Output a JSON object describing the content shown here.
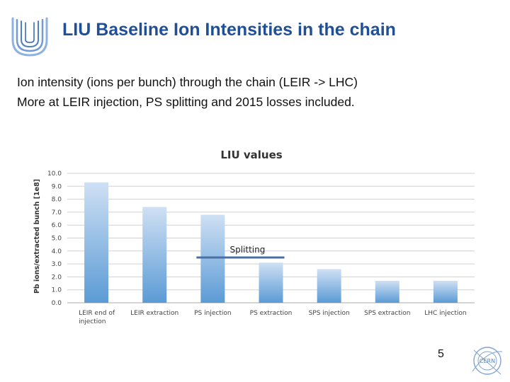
{
  "slide": {
    "title": "LIU Baseline Ion Intensities in the chain",
    "subtitle_line1": "Ion intensity (ions per bunch) through the chain (LEIR -> LHC)",
    "subtitle_line2": "More at LEIR injection, PS splitting and 2015 losses included.",
    "page_number": "5",
    "logo_icon": "liu-u-logo",
    "footer_logo_text": "CERN"
  },
  "colors": {
    "title": "#1f4f96",
    "bar_top": "#cfe0f4",
    "bar_bottom": "#5b9bd5",
    "splitting_line": "#4a6fa5"
  },
  "chart_data": {
    "type": "bar",
    "title": "LIU values",
    "ylabel": "Pb ions/extracted bunch [1e8]",
    "xlabel": "",
    "ylim": [
      0,
      10
    ],
    "yticks": [
      "0.0",
      "1.0",
      "2.0",
      "3.0",
      "4.0",
      "5.0",
      "6.0",
      "7.0",
      "8.0",
      "9.0",
      "10.0"
    ],
    "grid": true,
    "categories": [
      [
        "LEIR end of",
        "injection"
      ],
      [
        "LEIR extraction"
      ],
      [
        "PS injection"
      ],
      [
        "PS extraction"
      ],
      [
        "SPS injection"
      ],
      [
        "SPS extraction"
      ],
      [
        "LHC injection"
      ]
    ],
    "values": [
      9.3,
      7.4,
      6.8,
      3.1,
      2.6,
      1.7,
      1.7
    ],
    "annotation": {
      "text": "Splitting",
      "y": 3.5
    }
  }
}
